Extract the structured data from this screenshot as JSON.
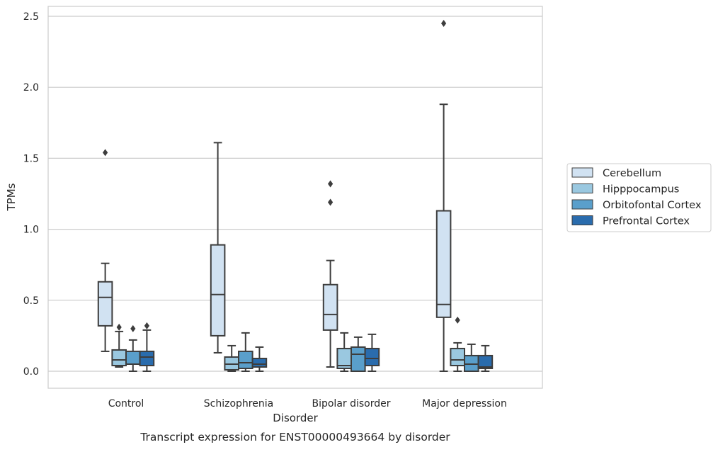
{
  "chart_data": {
    "type": "box",
    "title": "",
    "caption": "Transcript expression for ENST00000493664 by disorder",
    "xlabel": "Disorder",
    "ylabel": "TPMs",
    "ylim": [
      -0.12,
      2.57
    ],
    "yticks": [
      0.0,
      0.5,
      1.0,
      1.5,
      2.0,
      2.5
    ],
    "ytick_labels": [
      "0.0",
      "0.5",
      "1.0",
      "1.5",
      "2.0",
      "2.5"
    ],
    "grid": true,
    "legend_position": "right",
    "categories": [
      "Control",
      "Schizophrenia",
      "Bipolar disorder",
      "Major depression"
    ],
    "series": [
      {
        "name": "Cerebellum",
        "color": "#d1e2f2",
        "boxes": [
          {
            "whisker_low": 0.14,
            "q1": 0.32,
            "median": 0.52,
            "q3": 0.63,
            "whisker_high": 0.76,
            "outliers": [
              1.54
            ]
          },
          {
            "whisker_low": 0.13,
            "q1": 0.25,
            "median": 0.54,
            "q3": 0.89,
            "whisker_high": 1.61,
            "outliers": []
          },
          {
            "whisker_low": 0.03,
            "q1": 0.29,
            "median": 0.4,
            "q3": 0.61,
            "whisker_high": 0.78,
            "outliers": [
              1.19,
              1.32
            ]
          },
          {
            "whisker_low": 0.0,
            "q1": 0.38,
            "median": 0.47,
            "q3": 1.13,
            "whisker_high": 1.88,
            "outliers": [
              2.45
            ]
          }
        ]
      },
      {
        "name": "Hipppocampus",
        "color": "#9ac8e0",
        "boxes": [
          {
            "whisker_low": 0.03,
            "q1": 0.04,
            "median": 0.08,
            "q3": 0.15,
            "whisker_high": 0.28,
            "outliers": [
              0.31
            ]
          },
          {
            "whisker_low": 0.0,
            "q1": 0.01,
            "median": 0.05,
            "q3": 0.1,
            "whisker_high": 0.18,
            "outliers": []
          },
          {
            "whisker_low": 0.0,
            "q1": 0.02,
            "median": 0.04,
            "q3": 0.16,
            "whisker_high": 0.27,
            "outliers": []
          },
          {
            "whisker_low": 0.0,
            "q1": 0.04,
            "median": 0.08,
            "q3": 0.16,
            "whisker_high": 0.2,
            "outliers": [
              0.36
            ]
          }
        ]
      },
      {
        "name": "Orbitofontal Cortex",
        "color": "#5a9fcb",
        "boxes": [
          {
            "whisker_low": 0.0,
            "q1": 0.05,
            "median": 0.05,
            "q3": 0.14,
            "whisker_high": 0.22,
            "outliers": [
              0.3
            ]
          },
          {
            "whisker_low": 0.0,
            "q1": 0.02,
            "median": 0.06,
            "q3": 0.14,
            "whisker_high": 0.27,
            "outliers": []
          },
          {
            "whisker_low": 0.0,
            "q1": 0.0,
            "median": 0.12,
            "q3": 0.17,
            "whisker_high": 0.24,
            "outliers": []
          },
          {
            "whisker_low": 0.0,
            "q1": 0.0,
            "median": 0.05,
            "q3": 0.11,
            "whisker_high": 0.19,
            "outliers": []
          }
        ]
      },
      {
        "name": "Prefrontal Cortex",
        "color": "#2a6cad",
        "boxes": [
          {
            "whisker_low": 0.0,
            "q1": 0.04,
            "median": 0.1,
            "q3": 0.14,
            "whisker_high": 0.29,
            "outliers": [
              0.32
            ]
          },
          {
            "whisker_low": 0.0,
            "q1": 0.03,
            "median": 0.05,
            "q3": 0.09,
            "whisker_high": 0.17,
            "outliers": []
          },
          {
            "whisker_low": 0.0,
            "q1": 0.04,
            "median": 0.09,
            "q3": 0.16,
            "whisker_high": 0.26,
            "outliers": []
          },
          {
            "whisker_low": 0.0,
            "q1": 0.02,
            "median": 0.03,
            "q3": 0.11,
            "whisker_high": 0.18,
            "outliers": []
          }
        ]
      }
    ]
  },
  "colors": {
    "grid": "#cccccc",
    "frame": "#cccccc",
    "box_edge": "#3d3d3d",
    "text": "#262626"
  }
}
